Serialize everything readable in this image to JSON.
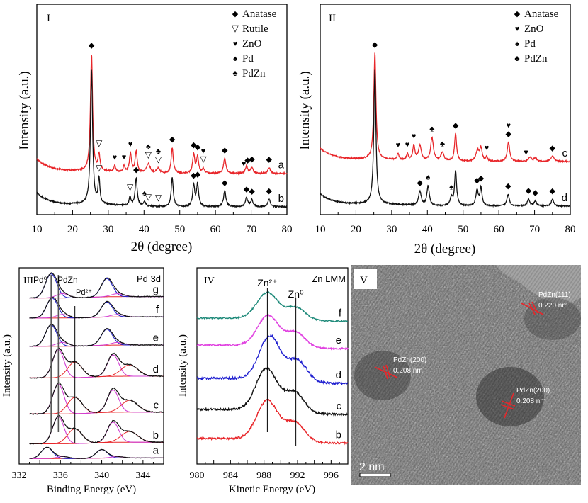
{
  "chart_data": [
    {
      "id": "I",
      "type": "line",
      "panel_label": "I",
      "xlabel": "2θ (degree)",
      "ylabel": "Intensity (a.u.)",
      "xlim": [
        10,
        80
      ],
      "xticks": [
        10,
        20,
        30,
        40,
        50,
        60,
        70,
        80
      ],
      "legend": {
        "placement": "top-right",
        "entries": [
          {
            "symbol": "◆",
            "label": "Anatase"
          },
          {
            "symbol": "▽",
            "label": "Rutile"
          },
          {
            "symbol": "♥",
            "label": "ZnO"
          },
          {
            "symbol": "♠",
            "label": "Pd"
          },
          {
            "symbol": "♣",
            "label": "PdZn"
          }
        ]
      },
      "series": [
        {
          "name": "a",
          "color": "#e8262a",
          "offset": 0.55,
          "baseline": 0.18,
          "peaks": [
            [
              25.3,
              1.0,
              0.35
            ],
            [
              27.4,
              0.14,
              0.3
            ],
            [
              31.8,
              0.05,
              0.3
            ],
            [
              34.4,
              0.05,
              0.3
            ],
            [
              36.2,
              0.16,
              0.35
            ],
            [
              37.8,
              0.18,
              0.35
            ],
            [
              41.2,
              0.08,
              0.6
            ],
            [
              44.0,
              0.04,
              0.5
            ],
            [
              47.9,
              0.22,
              0.35
            ],
            [
              53.9,
              0.16,
              0.35
            ],
            [
              55.0,
              0.14,
              0.35
            ],
            [
              56.6,
              0.04,
              0.3
            ],
            [
              62.6,
              0.13,
              0.4
            ],
            [
              68.7,
              0.06,
              0.4
            ],
            [
              70.2,
              0.05,
              0.4
            ],
            [
              75.0,
              0.05,
              0.4
            ]
          ],
          "markers": [
            [
              25.3,
              "◆"
            ],
            [
              27.4,
              "▽"
            ],
            [
              31.8,
              "♥"
            ],
            [
              34.4,
              "♥"
            ],
            [
              36.2,
              "♥"
            ],
            [
              41.2,
              "▽"
            ],
            [
              41.2,
              "♣"
            ],
            [
              44.0,
              "▽"
            ],
            [
              44.0,
              "♣"
            ],
            [
              47.9,
              "◆"
            ],
            [
              53.9,
              "◆"
            ],
            [
              55.0,
              "◆"
            ],
            [
              56.6,
              "▽"
            ],
            [
              56.6,
              "♥"
            ],
            [
              62.6,
              "◆"
            ],
            [
              67.9,
              "♥"
            ],
            [
              69.0,
              "◆"
            ],
            [
              70.2,
              "◆"
            ],
            [
              75.0,
              "◆"
            ]
          ]
        },
        {
          "name": "b",
          "color": "#111111",
          "offset": 0.0,
          "baseline": 0.18,
          "peaks": [
            [
              25.3,
              1.2,
              0.35
            ],
            [
              27.4,
              0.22,
              0.3
            ],
            [
              36.1,
              0.08,
              0.3
            ],
            [
              37.8,
              0.25,
              0.35
            ],
            [
              40.1,
              0.04,
              0.4
            ],
            [
              47.9,
              0.26,
              0.35
            ],
            [
              53.9,
              0.19,
              0.35
            ],
            [
              55.0,
              0.2,
              0.35
            ],
            [
              62.6,
              0.14,
              0.4
            ],
            [
              68.7,
              0.08,
              0.4
            ],
            [
              70.2,
              0.06,
              0.4
            ],
            [
              75.0,
              0.07,
              0.4
            ]
          ],
          "markers": [
            [
              27.4,
              "▽"
            ],
            [
              36.1,
              "▽"
            ],
            [
              37.8,
              "◆"
            ],
            [
              40.1,
              "♠"
            ],
            [
              41.2,
              "▽"
            ],
            [
              44.0,
              "▽"
            ],
            [
              53.9,
              "◆"
            ],
            [
              55.0,
              "◆"
            ],
            [
              62.6,
              "◆"
            ],
            [
              68.7,
              "◆"
            ],
            [
              70.2,
              "◆"
            ],
            [
              75.0,
              "◆"
            ]
          ]
        }
      ]
    },
    {
      "id": "II",
      "type": "line",
      "panel_label": "II",
      "xlabel": "2θ (degree)",
      "ylabel": "Intensity (a.u.)",
      "xlim": [
        10,
        80
      ],
      "xticks": [
        10,
        20,
        30,
        40,
        50,
        60,
        70,
        80
      ],
      "legend": {
        "placement": "top-right",
        "entries": [
          {
            "symbol": "◆",
            "label": "Anatase"
          },
          {
            "symbol": "♥",
            "label": "ZnO"
          },
          {
            "symbol": "♠",
            "label": "Pd"
          },
          {
            "symbol": "♣",
            "label": "PdZn"
          }
        ]
      },
      "series": [
        {
          "name": "c",
          "color": "#e8262a",
          "offset": 0.55,
          "baseline": 0.2,
          "peaks": [
            [
              25.3,
              1.0,
              0.35
            ],
            [
              31.8,
              0.06,
              0.3
            ],
            [
              34.4,
              0.06,
              0.3
            ],
            [
              36.2,
              0.14,
              0.35
            ],
            [
              37.9,
              0.14,
              0.5
            ],
            [
              41.3,
              0.22,
              0.45
            ],
            [
              44.2,
              0.08,
              0.5
            ],
            [
              47.9,
              0.26,
              0.35
            ],
            [
              54.0,
              0.1,
              0.5
            ],
            [
              55.0,
              0.12,
              0.4
            ],
            [
              56.6,
              0.04,
              0.3
            ],
            [
              62.7,
              0.18,
              0.4
            ],
            [
              68.7,
              0.04,
              0.5
            ],
            [
              70.2,
              0.03,
              0.5
            ],
            [
              75.0,
              0.05,
              0.5
            ]
          ],
          "markers": [
            [
              25.3,
              "◆"
            ],
            [
              31.8,
              "♥"
            ],
            [
              34.4,
              "♥"
            ],
            [
              36.2,
              "♥"
            ],
            [
              41.3,
              "♣"
            ],
            [
              44.2,
              "♣"
            ],
            [
              47.9,
              "◆"
            ],
            [
              56.6,
              "♥"
            ],
            [
              62.7,
              "◆"
            ],
            [
              62.7,
              "♥"
            ],
            [
              67.6,
              "♥"
            ],
            [
              75.0,
              "◆"
            ]
          ]
        },
        {
          "name": "d",
          "color": "#111111",
          "offset": 0.0,
          "baseline": 0.2,
          "peaks": [
            [
              25.3,
              1.35,
              0.35
            ],
            [
              37.9,
              0.14,
              0.45
            ],
            [
              40.2,
              0.2,
              0.4
            ],
            [
              46.7,
              0.08,
              0.4
            ],
            [
              47.9,
              0.35,
              0.35
            ],
            [
              53.9,
              0.16,
              0.4
            ],
            [
              55.0,
              0.18,
              0.35
            ],
            [
              62.6,
              0.12,
              0.4
            ],
            [
              68.3,
              0.07,
              0.4
            ],
            [
              70.2,
              0.05,
              0.4
            ],
            [
              75.0,
              0.07,
              0.4
            ]
          ],
          "markers": [
            [
              37.9,
              "◆"
            ],
            [
              40.2,
              "♠"
            ],
            [
              46.7,
              "♠"
            ],
            [
              53.9,
              "◆"
            ],
            [
              55.0,
              "◆"
            ],
            [
              62.6,
              "◆"
            ],
            [
              68.3,
              "◆"
            ],
            [
              70.2,
              "◆"
            ],
            [
              75.0,
              "◆"
            ]
          ]
        }
      ]
    },
    {
      "id": "III",
      "type": "line",
      "panel_label": "III",
      "title": "Pd 3d",
      "xlabel": "Binding Energy (eV)",
      "ylabel": "Intensity (a.u.)",
      "xlim": [
        332,
        346
      ],
      "xticks": [
        332,
        336,
        340,
        344
      ],
      "reference_lines": [
        {
          "label": "Pd⁰",
          "x": 335.1
        },
        {
          "label": "PdZn",
          "x": 335.8
        },
        {
          "label": "Pd²⁺",
          "x": 337.4
        }
      ],
      "series": [
        {
          "name": "g",
          "peak_3d52": 335.1,
          "peak_3d32": 340.5,
          "height": 0.55,
          "has_pd2plus": false
        },
        {
          "name": "f",
          "peak_3d52": 335.2,
          "peak_3d32": 340.5,
          "height": 0.3,
          "has_pd2plus": false
        },
        {
          "name": "e",
          "peak_3d52": 335.1,
          "peak_3d32": 340.5,
          "height": 0.5,
          "has_pd2plus": false
        },
        {
          "name": "d",
          "peak_3d52": 335.8,
          "peak_3d32": 341.1,
          "height": 0.85,
          "has_pd2plus": true
        },
        {
          "name": "c",
          "peak_3d52": 335.8,
          "peak_3d32": 341.1,
          "height": 0.9,
          "has_pd2plus": true
        },
        {
          "name": "b",
          "peak_3d52": 335.8,
          "peak_3d32": 341.1,
          "height": 0.8,
          "has_pd2plus": true
        },
        {
          "name": "a",
          "peak_3d52": 334.7,
          "peak_3d32": 340.0,
          "height": 0.25,
          "has_pd2plus": false
        }
      ],
      "component_colors": {
        "envelope": "#111111",
        "pd0": "#2424c8",
        "pdzn": "#d23cd2",
        "pd2plus": "#e8262a",
        "background": "#e8262a"
      }
    },
    {
      "id": "IV",
      "type": "line",
      "panel_label": "IV",
      "title": "Zn LMM",
      "xlabel": "Kinetic Energy (eV)",
      "ylabel": "Intensity (a.u.)",
      "xlim": [
        980,
        998
      ],
      "xticks": [
        980,
        984,
        988,
        992,
        996
      ],
      "reference_lines": [
        {
          "label": "Zn²⁺",
          "x": 988.4
        },
        {
          "label": "Zn⁰",
          "x": 991.8
        }
      ],
      "series": [
        {
          "name": "f",
          "color": "#1f8a7a",
          "peak": 988.4,
          "shoulder": 991.8
        },
        {
          "name": "e",
          "color": "#e040e0",
          "peak": 988.5,
          "shoulder": 991.8
        },
        {
          "name": "d",
          "color": "#2020d0",
          "peak": 988.7,
          "shoulder": 992.0
        },
        {
          "name": "c",
          "color": "#111111",
          "peak": 988.3,
          "shoulder": 991.6
        },
        {
          "name": "b",
          "color": "#e8262a",
          "peak": 988.4,
          "shoulder": 991.7
        }
      ]
    }
  ],
  "tem": {
    "panel_label": "V",
    "scale_bar": "2 nm",
    "annotations": [
      {
        "label": "PdZn(111)",
        "spacing": "0.220 nm"
      },
      {
        "label": "PdZn(200)",
        "spacing": "0.208 nm"
      },
      {
        "label": "PdZn(200)",
        "spacing": "0.208 nm"
      }
    ]
  }
}
